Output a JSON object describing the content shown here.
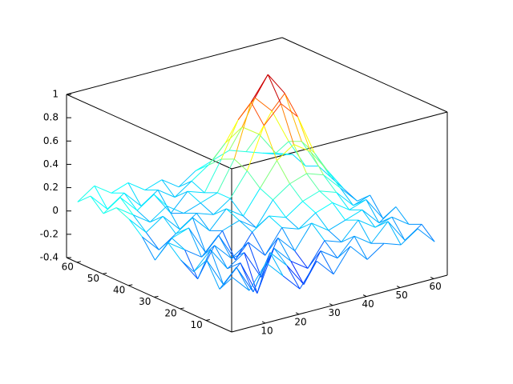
{
  "chart_data": {
    "type": "surface",
    "colormap": "jet",
    "x": [
      1,
      6,
      11,
      16,
      21,
      26,
      31,
      36,
      41,
      46,
      51,
      56,
      61
    ],
    "y": [
      1,
      6,
      11,
      16,
      21,
      26,
      31,
      36,
      41,
      46,
      51,
      56,
      61
    ],
    "z": [
      [
        0.05,
        -0.1,
        0.1,
        -0.05,
        -0.2,
        0.0,
        -0.15,
        0.05,
        -0.1,
        0.0,
        -0.05,
        0.05,
        -0.1
      ],
      [
        -0.1,
        0.05,
        -0.2,
        0.1,
        -0.05,
        -0.25,
        0.0,
        -0.1,
        0.05,
        -0.05,
        0.1,
        -0.1,
        0.0
      ],
      [
        0.1,
        -0.15,
        0.0,
        -0.3,
        0.05,
        -0.1,
        -0.2,
        0.0,
        -0.05,
        0.1,
        0.0,
        0.05,
        -0.05
      ],
      [
        -0.05,
        0.1,
        -0.1,
        0.0,
        -0.25,
        0.05,
        -0.1,
        0.1,
        0.0,
        0.05,
        0.1,
        -0.05,
        0.05
      ],
      [
        0.0,
        -0.2,
        0.05,
        -0.1,
        0.0,
        -0.15,
        0.05,
        0.0,
        0.1,
        0.15,
        0.05,
        0.1,
        -0.1
      ],
      [
        0.1,
        0.0,
        -0.1,
        0.05,
        -0.2,
        0.0,
        0.1,
        0.05,
        0.15,
        0.2,
        0.15,
        0.0,
        0.05
      ],
      [
        -0.1,
        0.05,
        0.1,
        -0.15,
        0.0,
        0.05,
        -0.05,
        0.15,
        0.25,
        0.3,
        0.25,
        0.1,
        -0.05
      ],
      [
        0.05,
        -0.1,
        0.0,
        0.1,
        -0.05,
        0.1,
        0.0,
        0.2,
        0.4,
        0.5,
        0.4,
        0.2,
        0.0
      ],
      [
        0.15,
        0.0,
        0.1,
        -0.05,
        0.05,
        0.0,
        0.1,
        0.3,
        0.65,
        0.8,
        0.65,
        0.3,
        0.05
      ],
      [
        0.2,
        0.1,
        0.0,
        0.1,
        0.0,
        0.05,
        0.1,
        0.35,
        0.8,
        1.0,
        0.8,
        0.35,
        0.1
      ],
      [
        0.1,
        0.2,
        0.05,
        0.15,
        -0.05,
        0.1,
        0.05,
        0.3,
        0.6,
        0.75,
        0.6,
        0.3,
        0.05
      ],
      [
        0.2,
        0.05,
        0.15,
        0.0,
        0.1,
        0.0,
        0.1,
        0.2,
        0.35,
        0.45,
        0.35,
        0.15,
        0.1
      ],
      [
        0.1,
        0.2,
        0.1,
        0.15,
        0.05,
        0.1,
        0.0,
        0.1,
        0.15,
        0.2,
        0.15,
        0.1,
        0.05
      ]
    ],
    "xlim": [
      0,
      64
    ],
    "ylim": [
      0,
      64
    ],
    "zlim": [
      -0.4,
      1
    ],
    "xticks": [
      10,
      20,
      30,
      40,
      50,
      60
    ],
    "yticks": [
      10,
      20,
      30,
      40,
      50,
      60
    ],
    "zticks": [
      -0.4,
      -0.2,
      0,
      0.2,
      0.4,
      0.6,
      0.8,
      1
    ]
  }
}
